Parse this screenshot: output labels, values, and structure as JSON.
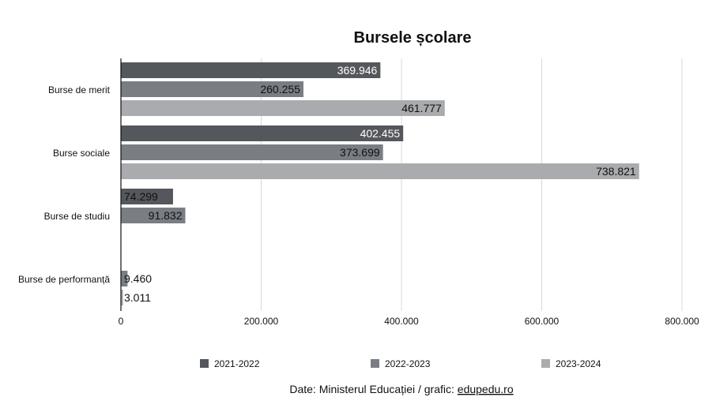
{
  "chart_data": {
    "type": "bar",
    "orientation": "horizontal",
    "title": "Bursele școlare",
    "categories": [
      "Burse de merit",
      "Burse sociale",
      "Burse de studiu",
      "Burse de performanță"
    ],
    "series": [
      {
        "name": "2021-2022",
        "color": "#54575c",
        "values": [
          369946,
          402455,
          74299,
          null
        ],
        "labels": [
          "369.946",
          "402.455",
          "74.299",
          ""
        ]
      },
      {
        "name": "2022-2023",
        "color": "#7a7e84",
        "values": [
          260255,
          373699,
          91832,
          9460
        ],
        "labels": [
          "260.255",
          "373.699",
          "91.832",
          "9.460"
        ]
      },
      {
        "name": "2023-2024",
        "color": "#a9abae",
        "values": [
          461777,
          738821,
          null,
          3011
        ],
        "labels": [
          "461.777",
          "738.821",
          "",
          "3.011"
        ]
      }
    ],
    "xlim": [
      0,
      800000
    ],
    "xticks": [
      0,
      200000,
      400000,
      600000,
      800000
    ],
    "xtick_labels": [
      "0",
      "200.000",
      "400.000",
      "600.000",
      "800.000"
    ],
    "grid": "vertical",
    "legend_position": "bottom"
  },
  "source": {
    "prefix": "Date: Ministerul Educației / grafic: ",
    "link": "edupedu.ro"
  }
}
